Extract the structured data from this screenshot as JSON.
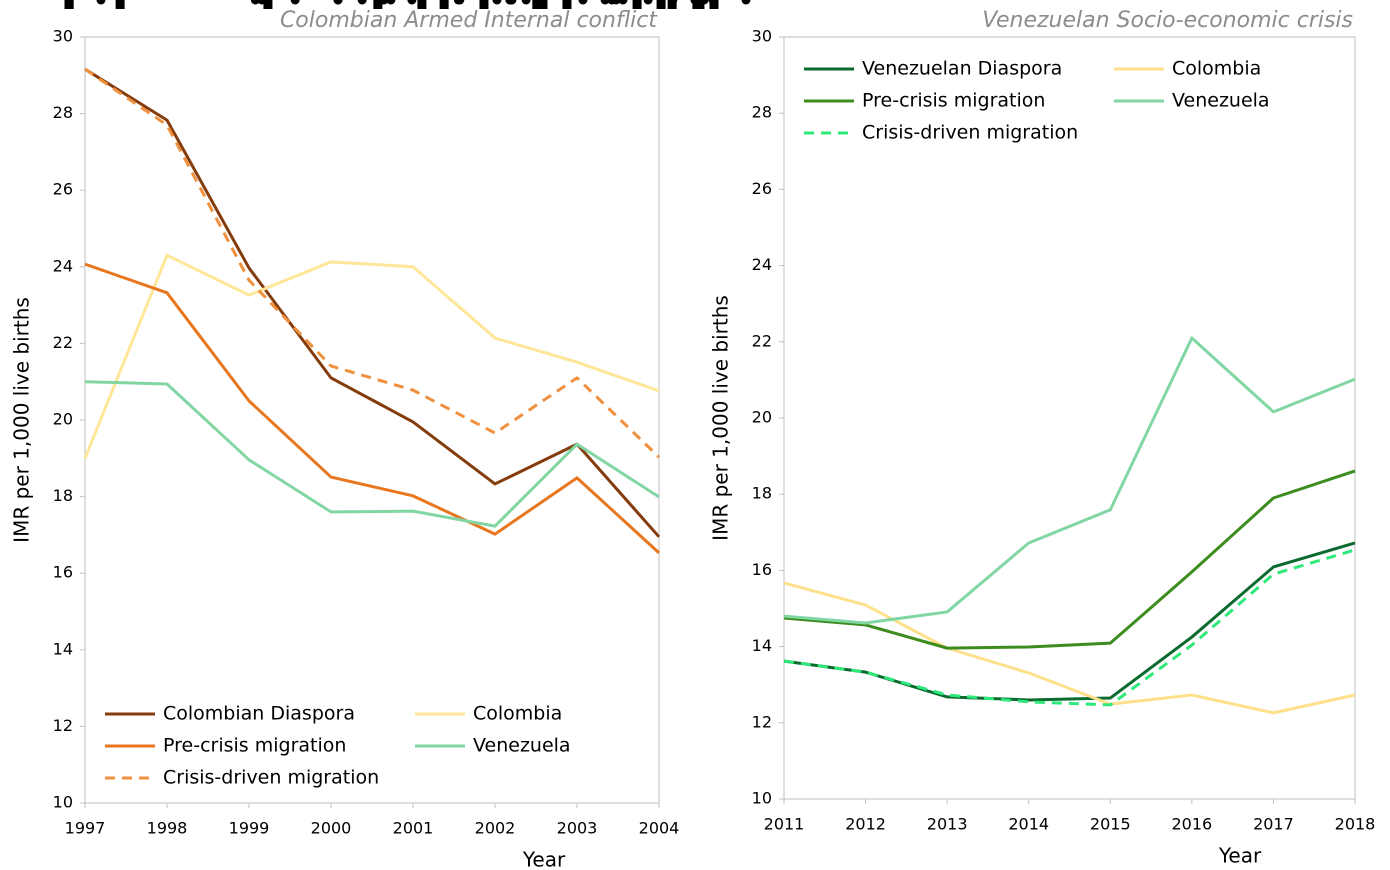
{
  "chart_data": [
    {
      "type": "line",
      "title": "Colombian Armed Internal conflict",
      "xlabel": "Year",
      "ylabel": "IMR per 1,000 live births",
      "x": [
        1997,
        1998,
        1999,
        2000,
        2001,
        2002,
        2003,
        2004
      ],
      "xlim": [
        1997,
        2004
      ],
      "xticks": [
        1997,
        1998,
        1999,
        2000,
        2001,
        2002,
        2003,
        2004
      ],
      "ylim": [
        10,
        30
      ],
      "yticks": [
        10,
        12,
        14,
        16,
        18,
        20,
        22,
        24,
        26,
        28,
        30
      ],
      "legend": "lower left",
      "series": [
        {
          "name": "Colombian Diaspora",
          "color": "#843c0c",
          "marker": "square",
          "marker_color": "#a5281b",
          "dash": false,
          "values": [
            29.16,
            27.83,
            23.97,
            21.1,
            19.95,
            18.33,
            19.37,
            16.95
          ]
        },
        {
          "name": "Colombia",
          "color": "#ffe699",
          "marker": "circle",
          "marker_color": "#ffff33",
          "dash": false,
          "values": [
            19.0,
            24.3,
            23.26,
            24.13,
            24.0,
            22.14,
            21.51,
            20.76
          ]
        },
        {
          "name": "Pre-crisis migration",
          "color": "#e8761e",
          "marker": "none",
          "marker_color": "#e8761e",
          "dash": false,
          "values": [
            24.07,
            23.32,
            20.5,
            18.51,
            18.02,
            17.02,
            18.49,
            16.53
          ]
        },
        {
          "name": "Venezuela",
          "color": "#82d6a4",
          "marker": "circle",
          "marker_color": "#a8e3bd",
          "dash": false,
          "values": [
            21.0,
            20.94,
            18.96,
            17.6,
            17.62,
            17.23,
            19.37,
            17.99
          ]
        },
        {
          "name": "Crisis-driven migration",
          "color": "#f0903e",
          "marker": "none",
          "marker_color": "#f0903e",
          "dash": true,
          "values": [
            29.16,
            27.7,
            23.65,
            21.41,
            20.78,
            19.66,
            21.1,
            19.03
          ]
        }
      ]
    },
    {
      "type": "line",
      "title": "Venezuelan Socio-economic crisis",
      "xlabel": "Year",
      "ylabel": "IMR per 1,000 live births",
      "x": [
        2011,
        2012,
        2013,
        2014,
        2015,
        2016,
        2017,
        2018
      ],
      "xlim": [
        2011,
        2018
      ],
      "xticks": [
        2011,
        2012,
        2013,
        2014,
        2015,
        2016,
        2017,
        2018
      ],
      "ylim": [
        10,
        30
      ],
      "yticks": [
        10,
        12,
        14,
        16,
        18,
        20,
        22,
        24,
        26,
        28,
        30
      ],
      "legend": "upper left",
      "series": [
        {
          "name": "Venezuelan Diaspora",
          "color": "#0b6b2e",
          "marker": "square",
          "marker_color": "#2fb54f",
          "dash": false,
          "values": [
            13.62,
            13.33,
            12.68,
            12.6,
            12.65,
            14.25,
            16.09,
            16.72
          ]
        },
        {
          "name": "Colombia",
          "color": "#ffe08a",
          "marker": "circle",
          "marker_color": "#ffff33",
          "dash": false,
          "values": [
            15.67,
            15.09,
            13.96,
            13.31,
            12.49,
            12.73,
            12.26,
            12.73
          ]
        },
        {
          "name": "Pre-crisis migration",
          "color": "#3d8c1e",
          "marker": "none",
          "marker_color": "#3d8c1e",
          "dash": false,
          "values": [
            14.75,
            14.57,
            13.96,
            13.99,
            14.09,
            15.96,
            17.9,
            18.61
          ]
        },
        {
          "name": "Venezuela",
          "color": "#82d6a4",
          "marker": "circle",
          "marker_color": "#a8e3bd",
          "dash": false,
          "values": [
            14.8,
            14.62,
            14.91,
            16.72,
            17.59,
            22.1,
            20.16,
            21.02
          ]
        },
        {
          "name": "Crisis-driven migration",
          "color": "#2ee87a",
          "marker": "none",
          "marker_color": "#2ee87a",
          "dash": true,
          "values": [
            13.62,
            13.33,
            12.73,
            12.55,
            12.47,
            14.04,
            15.9,
            16.54
          ]
        }
      ]
    }
  ]
}
